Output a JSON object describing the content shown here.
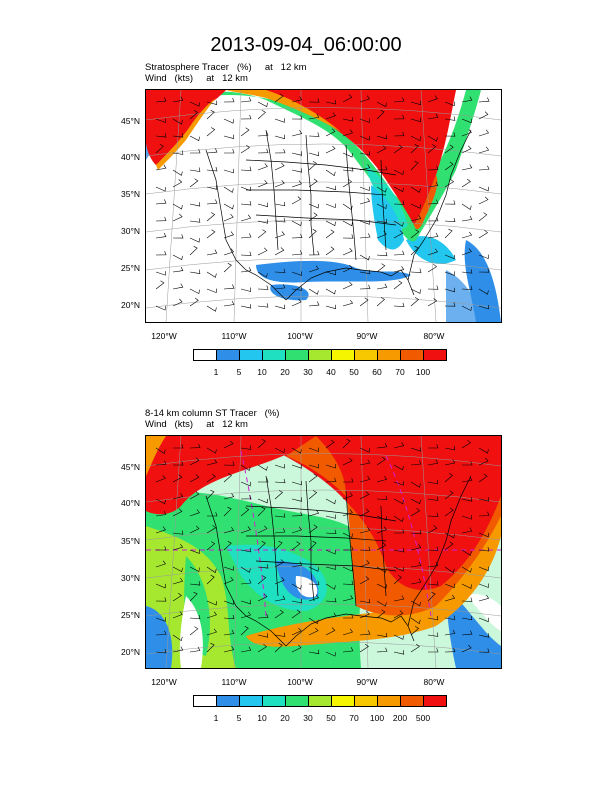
{
  "title": "2013-09-04_06:00:00",
  "panel1": {
    "line1": "Stratosphere Tracer   (%)     at   12 km",
    "line2": "Wind   (kts)     at   12 km",
    "lat_labels": [
      "45°N",
      "40°N",
      "35°N",
      "30°N",
      "25°N",
      "20°N"
    ],
    "lon_labels": [
      "120°W",
      "110°W",
      "100°W",
      "90°W",
      "80°W"
    ],
    "colorbar_labels": [
      "1",
      "5",
      "10",
      "20",
      "30",
      "40",
      "50",
      "60",
      "70",
      "100"
    ]
  },
  "panel2": {
    "line1": "8-14 km column ST Tracer   (%)",
    "line2": "Wind   (kts)     at   12 km",
    "lat_labels": [
      "45°N",
      "40°N",
      "35°N",
      "30°N",
      "25°N",
      "20°N"
    ],
    "lon_labels": [
      "120°W",
      "110°W",
      "100°W",
      "90°W",
      "80°W"
    ],
    "colorbar_labels": [
      "1",
      "5",
      "10",
      "20",
      "30",
      "50",
      "70",
      "100",
      "200",
      "500"
    ]
  },
  "colorbar_colors": [
    "#ffffff",
    "#2f8fe8",
    "#22c6ee",
    "#1fe0c0",
    "#30e070",
    "#a6e830",
    "#f5f500",
    "#f7c800",
    "#f79a00",
    "#f25a00",
    "#f01010"
  ]
}
